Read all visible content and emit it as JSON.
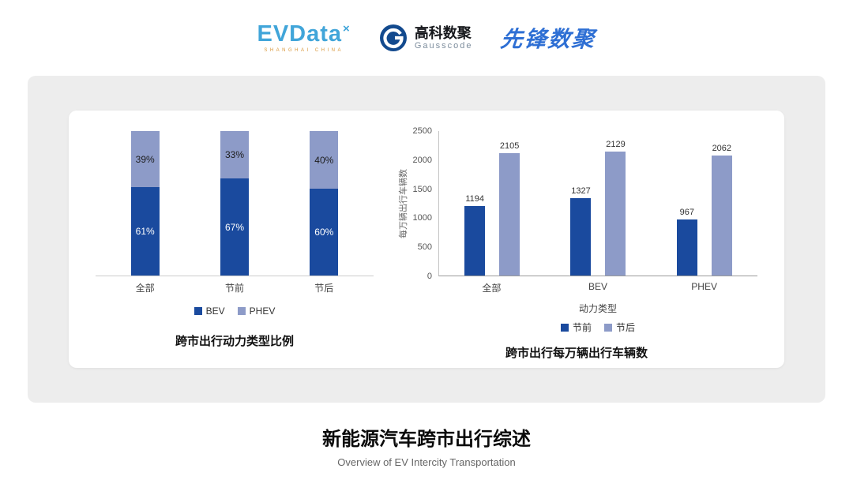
{
  "colors": {
    "primary_dark": "#1a4a9e",
    "primary_light": "#8d9bc8",
    "evdata_blue": "#41a5d9",
    "gausscode_blue": "#134a8e",
    "pioneer_blue": "#2e6fd4"
  },
  "header": {
    "evdata": {
      "wordmark": "EVData",
      "x_mark": "×",
      "subtext": "SHANGHAI CHINA"
    },
    "gausscode": {
      "name_cn": "高科数聚",
      "name_en": "Gausscode"
    },
    "pioneer": {
      "wordmark": "先锋数聚"
    }
  },
  "footer": {
    "title": "新能源汽车跨市出行综述",
    "subtitle": "Overview of EV Intercity Transportation"
  },
  "chart_data": [
    {
      "type": "bar",
      "variant": "stacked-percent",
      "title": "跨市出行动力类型比例",
      "categories": [
        "全部",
        "节前",
        "节后"
      ],
      "series": [
        {
          "name": "BEV",
          "color": "#1a4a9e",
          "values": [
            61,
            67,
            60
          ]
        },
        {
          "name": "PHEV",
          "color": "#8d9bc8",
          "values": [
            39,
            33,
            40
          ]
        }
      ],
      "value_format": "percent",
      "legend_position": "bottom",
      "grid": false
    },
    {
      "type": "bar",
      "variant": "grouped",
      "title": "跨市出行每万辆出行车辆数",
      "categories": [
        "全部",
        "BEV",
        "PHEV"
      ],
      "xlabel": "动力类型",
      "ylabel": "每万辆出行车辆数",
      "ylim": [
        0,
        2500
      ],
      "yticks": [
        0,
        500,
        1000,
        1500,
        2000,
        2500
      ],
      "series": [
        {
          "name": "节前",
          "color": "#1a4a9e",
          "values": [
            1194,
            1327,
            967
          ]
        },
        {
          "name": "节后",
          "color": "#8d9bc8",
          "values": [
            2105,
            2129,
            2062
          ]
        }
      ],
      "legend_position": "bottom",
      "grid": false
    }
  ]
}
